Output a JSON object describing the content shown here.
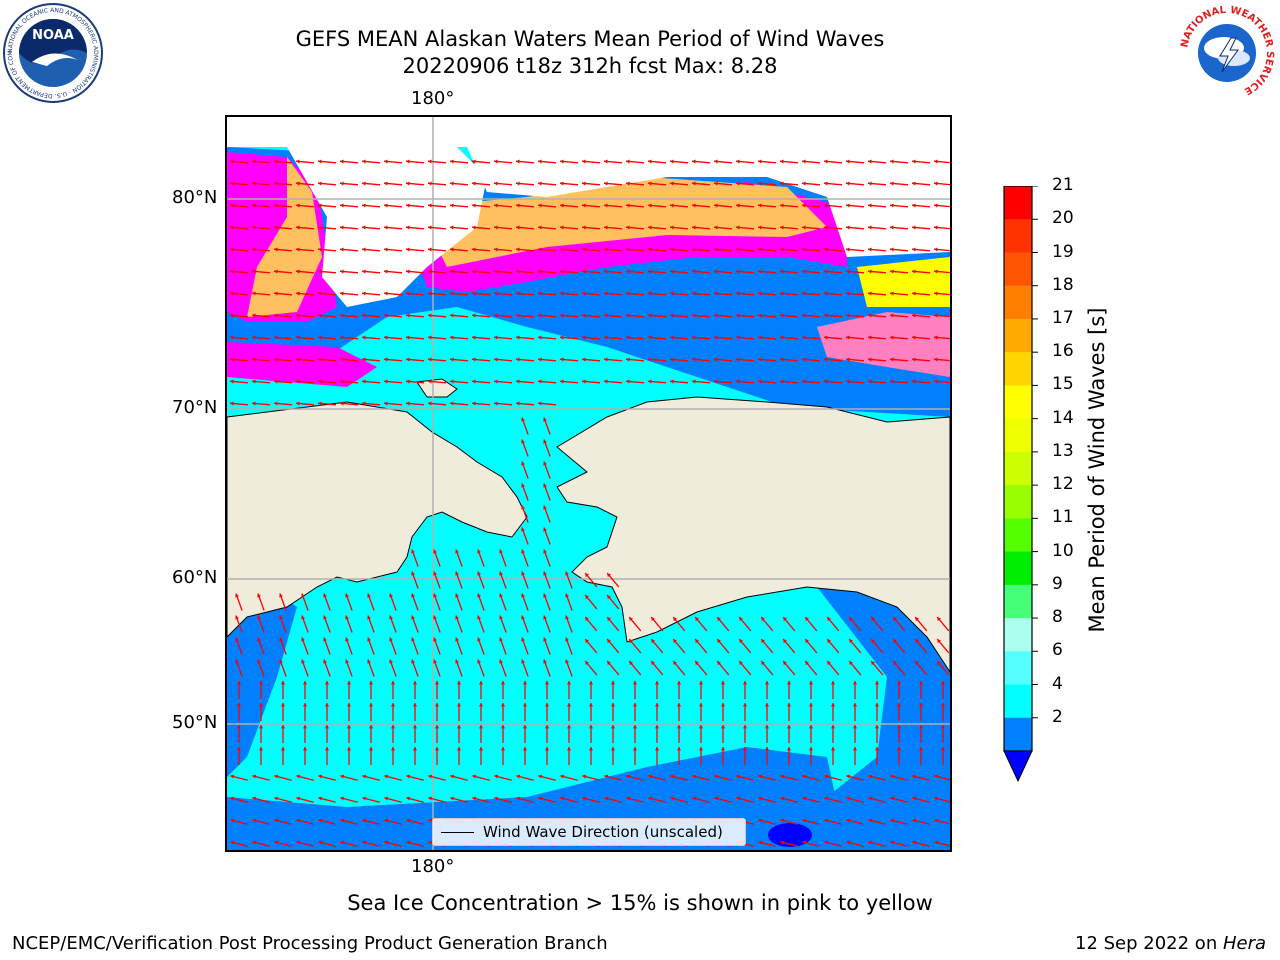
{
  "title": {
    "line1": "GEFS MEAN Alaskan Waters Mean Period of Wind Waves",
    "line2": "20220906 t18z 312h fcst   Max: 8.28"
  },
  "map": {
    "lon_label_top": "180°",
    "lon_label_bottom": "180°",
    "lat_labels": [
      "80°N",
      "70°N",
      "60°N",
      "50°N"
    ],
    "legend_label": "Wind Wave Direction (unscaled)",
    "land_color": "#efecdc",
    "ocean_low_color": "#0080ff",
    "ocean_high_color": "#00ffff",
    "arrow_color": "#ff0000",
    "ice_colors": [
      "#ff00ff",
      "#ff80c0",
      "#ffc060",
      "#ffff00"
    ]
  },
  "colorbar": {
    "label": "Mean Period of Wind Waves [s]",
    "ticks": [
      "21",
      "20",
      "19",
      "18",
      "17",
      "16",
      "15",
      "14",
      "13",
      "12",
      "11",
      "10",
      "9",
      "8",
      "6",
      "4",
      "2"
    ],
    "colors": [
      "#ff0000",
      "#ff3300",
      "#ff5500",
      "#ff8000",
      "#ffaa00",
      "#ffd500",
      "#ffff00",
      "#eeff00",
      "#ccff00",
      "#99ff00",
      "#55ff00",
      "#00ee00",
      "#44ff77",
      "#aaffee",
      "#55ffff",
      "#00ffff",
      "#0080ff"
    ],
    "extend_color": "#0000ff"
  },
  "caption": "Sea Ice Concentration > 15% is shown in pink to yellow",
  "footer": {
    "left": "NCEP/EMC/Verification Post Processing Product Generation Branch",
    "date": "12 Sep 2022 on ",
    "machine": "Hera"
  },
  "logos": {
    "noaa_text": "NOAA",
    "noaa_ring": "NATIONAL OCEANIC AND ATMOSPHERIC ADMINISTRATION · U.S. DEPARTMENT OF COMMERCE",
    "nws_ring": "NATIONAL WEATHER SERVICE"
  }
}
